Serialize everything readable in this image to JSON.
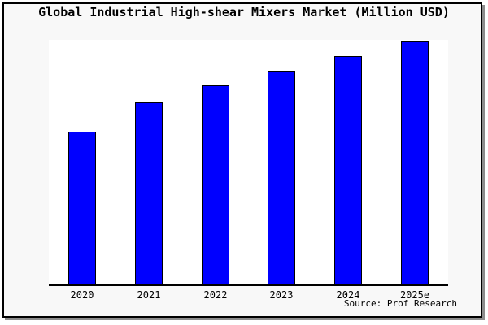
{
  "window": {
    "inner_background": "#f8f8f8",
    "plot_background": "#ffffff",
    "frame_border_color": "#000000",
    "shadow_color": "#8c8c8c"
  },
  "chart_data": {
    "type": "bar",
    "title": "Global Industrial High-shear Mixers Market (Million USD)",
    "categories": [
      "2020",
      "2021",
      "2022",
      "2023",
      "2024",
      "2025e"
    ],
    "values": [
      63,
      75,
      82,
      88,
      94,
      100
    ],
    "value_scale": "relative (no y-axis labels shown; tallest bar 2025e = 100)",
    "xlabel": "",
    "ylabel": "",
    "ylim": [
      0,
      100
    ],
    "grid": false,
    "legend": false,
    "bar_color": "#0000ff",
    "bar_border_color": "#000000",
    "source": "Source: Prof Research"
  }
}
